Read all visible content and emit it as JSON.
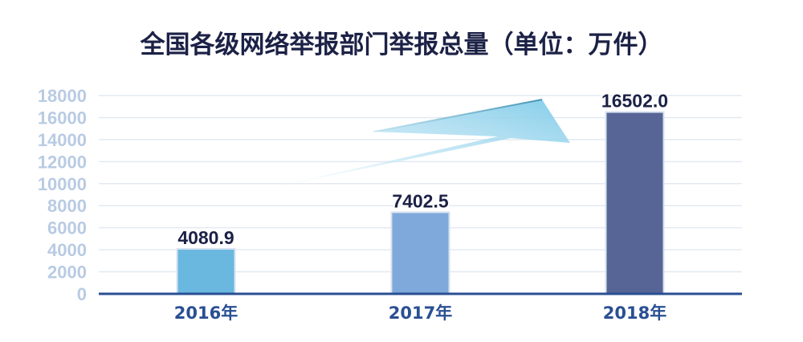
{
  "chart_data": {
    "type": "bar",
    "title": "全国各级网络举报部门举报总量（单位：万件）",
    "xlabel": "",
    "ylabel": "",
    "categories": [
      "2016年",
      "2017年",
      "2018年"
    ],
    "values": [
      4080.9,
      7402.5,
      16502.0
    ],
    "data_labels": [
      "4080.9",
      "7402.5",
      "16502.0"
    ],
    "y_ticks": [
      "0",
      "2000",
      "4000",
      "6000",
      "8000",
      "10000",
      "12000",
      "14000",
      "16000",
      "18000"
    ],
    "ylim": [
      0,
      18000
    ],
    "grid": true,
    "legend": "none",
    "colors": [
      "#6ab8df",
      "#7ea9da",
      "#566595"
    ],
    "axis_color": "#2a4f93",
    "grid_color": "#e3e9f2",
    "trend_arrow": "upward"
  }
}
